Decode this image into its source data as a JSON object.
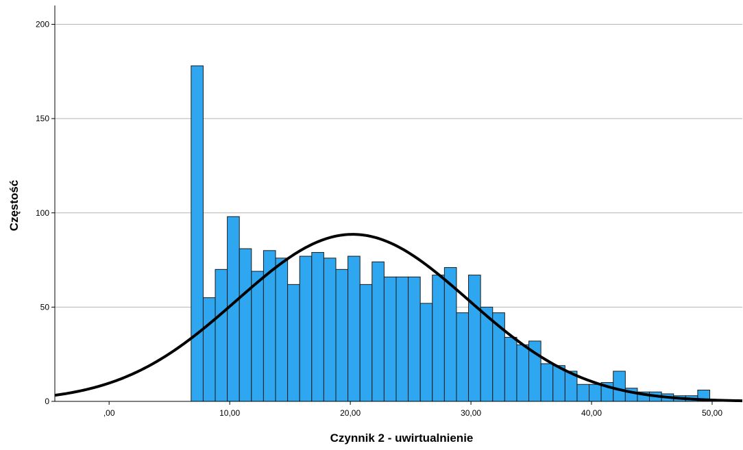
{
  "chart_data": {
    "type": "bar",
    "subtype": "histogram",
    "title": "",
    "xlabel": "Czynnik 2 - uwirtualnienie",
    "ylabel": "Częstość",
    "xlim": [
      -4.5,
      52.5
    ],
    "ylim": [
      0,
      210
    ],
    "x_ticks": [
      0,
      10,
      20,
      30,
      40,
      50
    ],
    "x_tick_labels": [
      ",00",
      "10,00",
      "20,00",
      "30,00",
      "40,00",
      "50,00"
    ],
    "y_ticks": [
      0,
      50,
      100,
      150,
      200
    ],
    "y_tick_labels": [
      "0",
      "50",
      "100",
      "150",
      "200"
    ],
    "grid": "horizontal",
    "legend": "none",
    "bar_color": "#2fa7f0",
    "bar_edge_color": "#1a1a1a",
    "curve_color": "#000000",
    "bin_width": 1.0,
    "bin_starts": [
      6.8,
      7.8,
      8.8,
      9.8,
      10.8,
      11.8,
      12.8,
      13.8,
      14.8,
      15.8,
      16.8,
      17.8,
      18.8,
      19.8,
      20.8,
      21.8,
      22.8,
      23.8,
      24.8,
      25.8,
      26.8,
      27.8,
      28.8,
      29.8,
      30.8,
      31.8,
      32.8,
      33.8,
      34.8,
      35.8,
      36.8,
      37.8,
      38.8,
      39.8,
      40.8,
      41.8,
      42.8,
      43.8,
      44.8,
      45.8,
      46.8,
      47.8,
      48.8
    ],
    "values": [
      178,
      55,
      70,
      98,
      81,
      69,
      80,
      76,
      62,
      77,
      79,
      76,
      70,
      77,
      62,
      74,
      66,
      66,
      66,
      52,
      67,
      71,
      47,
      67,
      50,
      47,
      34,
      30,
      32,
      20,
      19,
      16,
      9,
      9,
      10,
      16,
      7,
      5,
      5,
      4,
      3,
      3,
      6
    ],
    "normal_curve": {
      "mean": 20.2,
      "sd": 9.6,
      "peak": 88.6
    }
  }
}
